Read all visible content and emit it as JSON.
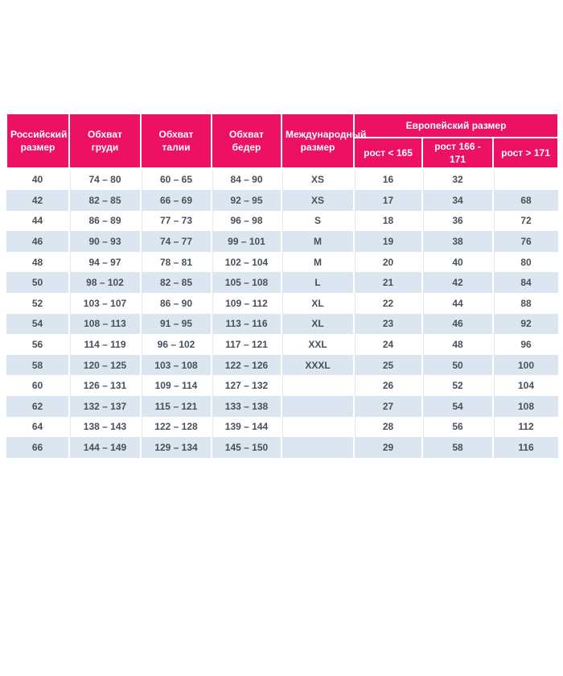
{
  "colors": {
    "header_bg": "#ED1164",
    "header_text": "#FFFFFF",
    "row_alt_bg": "#DCE6F1",
    "body_text": "#485059"
  },
  "table": {
    "header": {
      "col_russian_size": "Российский размер",
      "col_chest": "Обхват груди",
      "col_waist": "Обхват талии",
      "col_hips": "Обхват бедер",
      "col_international_size": "Международный размер",
      "group_european_size": "Европейский размер",
      "sub_height_lt_165": "рост < 165",
      "sub_height_166_171": "рост 166 - 171",
      "sub_height_gt_171": "рост > 171"
    },
    "rows": [
      [
        "40",
        "74 – 80",
        "60 – 65",
        "84 – 90",
        "XS",
        "16",
        "32",
        ""
      ],
      [
        "42",
        "82 – 85",
        "66 – 69",
        "92 – 95",
        "XS",
        "17",
        "34",
        "68"
      ],
      [
        "44",
        "86 – 89",
        "77 – 73",
        "96 – 98",
        "S",
        "18",
        "36",
        "72"
      ],
      [
        "46",
        "90 – 93",
        "74 – 77",
        "99 – 101",
        "M",
        "19",
        "38",
        "76"
      ],
      [
        "48",
        "94 – 97",
        "78 – 81",
        "102 – 104",
        "M",
        "20",
        "40",
        "80"
      ],
      [
        "50",
        "98 – 102",
        "82 – 85",
        "105 – 108",
        "L",
        "21",
        "42",
        "84"
      ],
      [
        "52",
        "103 – 107",
        "86 – 90",
        "109 – 112",
        "XL",
        "22",
        "44",
        "88"
      ],
      [
        "54",
        "108 – 113",
        "91 – 95",
        "113 – 116",
        "XL",
        "23",
        "46",
        "92"
      ],
      [
        "56",
        "114 – 119",
        "96 – 102",
        "117 – 121",
        "XXL",
        "24",
        "48",
        "96"
      ],
      [
        "58",
        "120 – 125",
        "103 – 108",
        "122 – 126",
        "XXXL",
        "25",
        "50",
        "100"
      ],
      [
        "60",
        "126 – 131",
        "109 – 114",
        "127 – 132",
        "",
        "26",
        "52",
        "104"
      ],
      [
        "62",
        "132 – 137",
        "115 – 121",
        "133 – 138",
        "",
        "27",
        "54",
        "108"
      ],
      [
        "64",
        "138 – 143",
        "122 – 128",
        "139 – 144",
        "",
        "28",
        "56",
        "112"
      ],
      [
        "66",
        "144 – 149",
        "129 – 134",
        "145 – 150",
        "",
        "29",
        "58",
        "116"
      ]
    ]
  }
}
